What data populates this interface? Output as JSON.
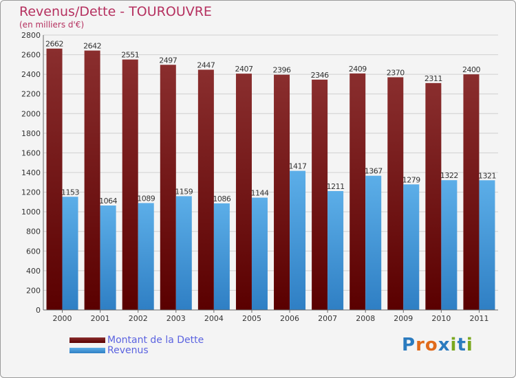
{
  "header": {
    "title": "Revenus/Dette - TOUROUVRE",
    "subtitle": "(en milliers d'€)"
  },
  "legend": [
    {
      "label": "Montant de la Dette",
      "color": "#7a1a1a"
    },
    {
      "label": "Revenus",
      "color": "#4da3e6"
    }
  ],
  "logo": {
    "text": "Proxiti",
    "letters": [
      "P",
      "r",
      "o",
      "x",
      "i",
      "t",
      "i"
    ],
    "colors": [
      "#2b7bbf",
      "#e06a1b",
      "#e06a1b",
      "#2b7bbf",
      "#7aa81f",
      "#2b7bbf",
      "#7aa81f"
    ]
  },
  "chart_data": {
    "type": "bar",
    "title": "Revenus/Dette - TOUROUVRE",
    "subtitle": "(en milliers d'€)",
    "categories": [
      "2000",
      "2001",
      "2002",
      "2003",
      "2004",
      "2005",
      "2006",
      "2007",
      "2008",
      "2009",
      "2010",
      "2011"
    ],
    "series": [
      {
        "name": "Montant de la Dette",
        "color": "#7a1a1a",
        "values": [
          2662,
          2642,
          2551,
          2497,
          2447,
          2407,
          2396,
          2346,
          2409,
          2370,
          2311,
          2400
        ]
      },
      {
        "name": "Revenus",
        "color": "#4da3e6",
        "values": [
          1153,
          1064,
          1089,
          1159,
          1086,
          1144,
          1417,
          1211,
          1367,
          1279,
          1322,
          1321
        ]
      }
    ],
    "ylim": [
      0,
      2800
    ],
    "yticks": [
      0,
      200,
      400,
      600,
      800,
      1000,
      1200,
      1400,
      1600,
      1800,
      2000,
      2200,
      2400,
      2600,
      2800
    ],
    "grid": true,
    "data_labels": true,
    "legend_position": "bottom-left"
  }
}
